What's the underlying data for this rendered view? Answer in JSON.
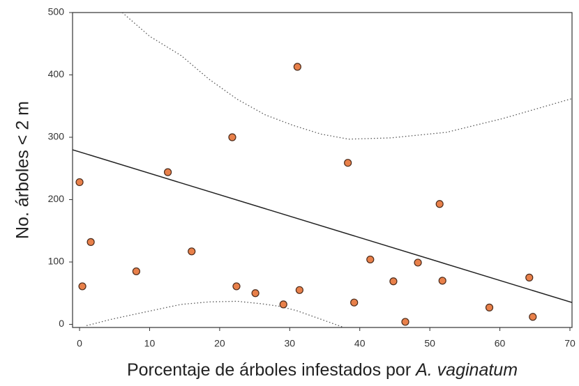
{
  "chart_data": {
    "type": "scatter",
    "y_label": "No. árboles < 2 m",
    "x_label": [
      "Porcentaje de árboles infestados por ",
      "A. vaginatum"
    ],
    "xlim": [
      -1,
      70.3
    ],
    "ylim": [
      -5,
      500
    ],
    "xticks": [
      0,
      10,
      20,
      30,
      40,
      50,
      60,
      70
    ],
    "yticks": [
      0,
      100,
      200,
      300,
      400,
      500
    ],
    "series": [
      {
        "color": "#e8804a",
        "x": [
          0,
          0.4,
          1.6,
          8.1,
          12.6,
          16,
          21.8,
          22.4,
          25.1,
          29.1,
          31.1,
          31.4,
          38.3,
          39.2,
          41.5,
          44.8,
          46.5,
          48.3,
          51.4,
          51.8,
          58.5,
          64.2,
          64.7
        ],
        "y": [
          228,
          61,
          132,
          85,
          244,
          117,
          300,
          61,
          50,
          32,
          413,
          55,
          259,
          35,
          104,
          69,
          4,
          99,
          193,
          70,
          27,
          75,
          12
        ]
      }
    ],
    "fit": {
      "color": "#222",
      "x": [
        -1,
        70.3
      ],
      "y": [
        280,
        35
      ]
    },
    "bands": [
      {
        "color": "#555",
        "x": [
          6.1,
          10,
          14.5,
          18.5,
          22.5,
          26.5,
          30.5,
          34.5,
          38.4,
          44.4,
          52.4,
          60.4,
          70.3
        ],
        "y": [
          500,
          462,
          431,
          393,
          361,
          336,
          319,
          305,
          297,
          299,
          308,
          330,
          362
        ]
      },
      {
        "color": "#555",
        "x": [
          1,
          4.5,
          8.6,
          14.5,
          18.5,
          22.5,
          26,
          28.5,
          31,
          33.5,
          37.5
        ],
        "y": [
          -2,
          8,
          18,
          32,
          36,
          37,
          33,
          29,
          22,
          12,
          -4
        ]
      }
    ]
  }
}
